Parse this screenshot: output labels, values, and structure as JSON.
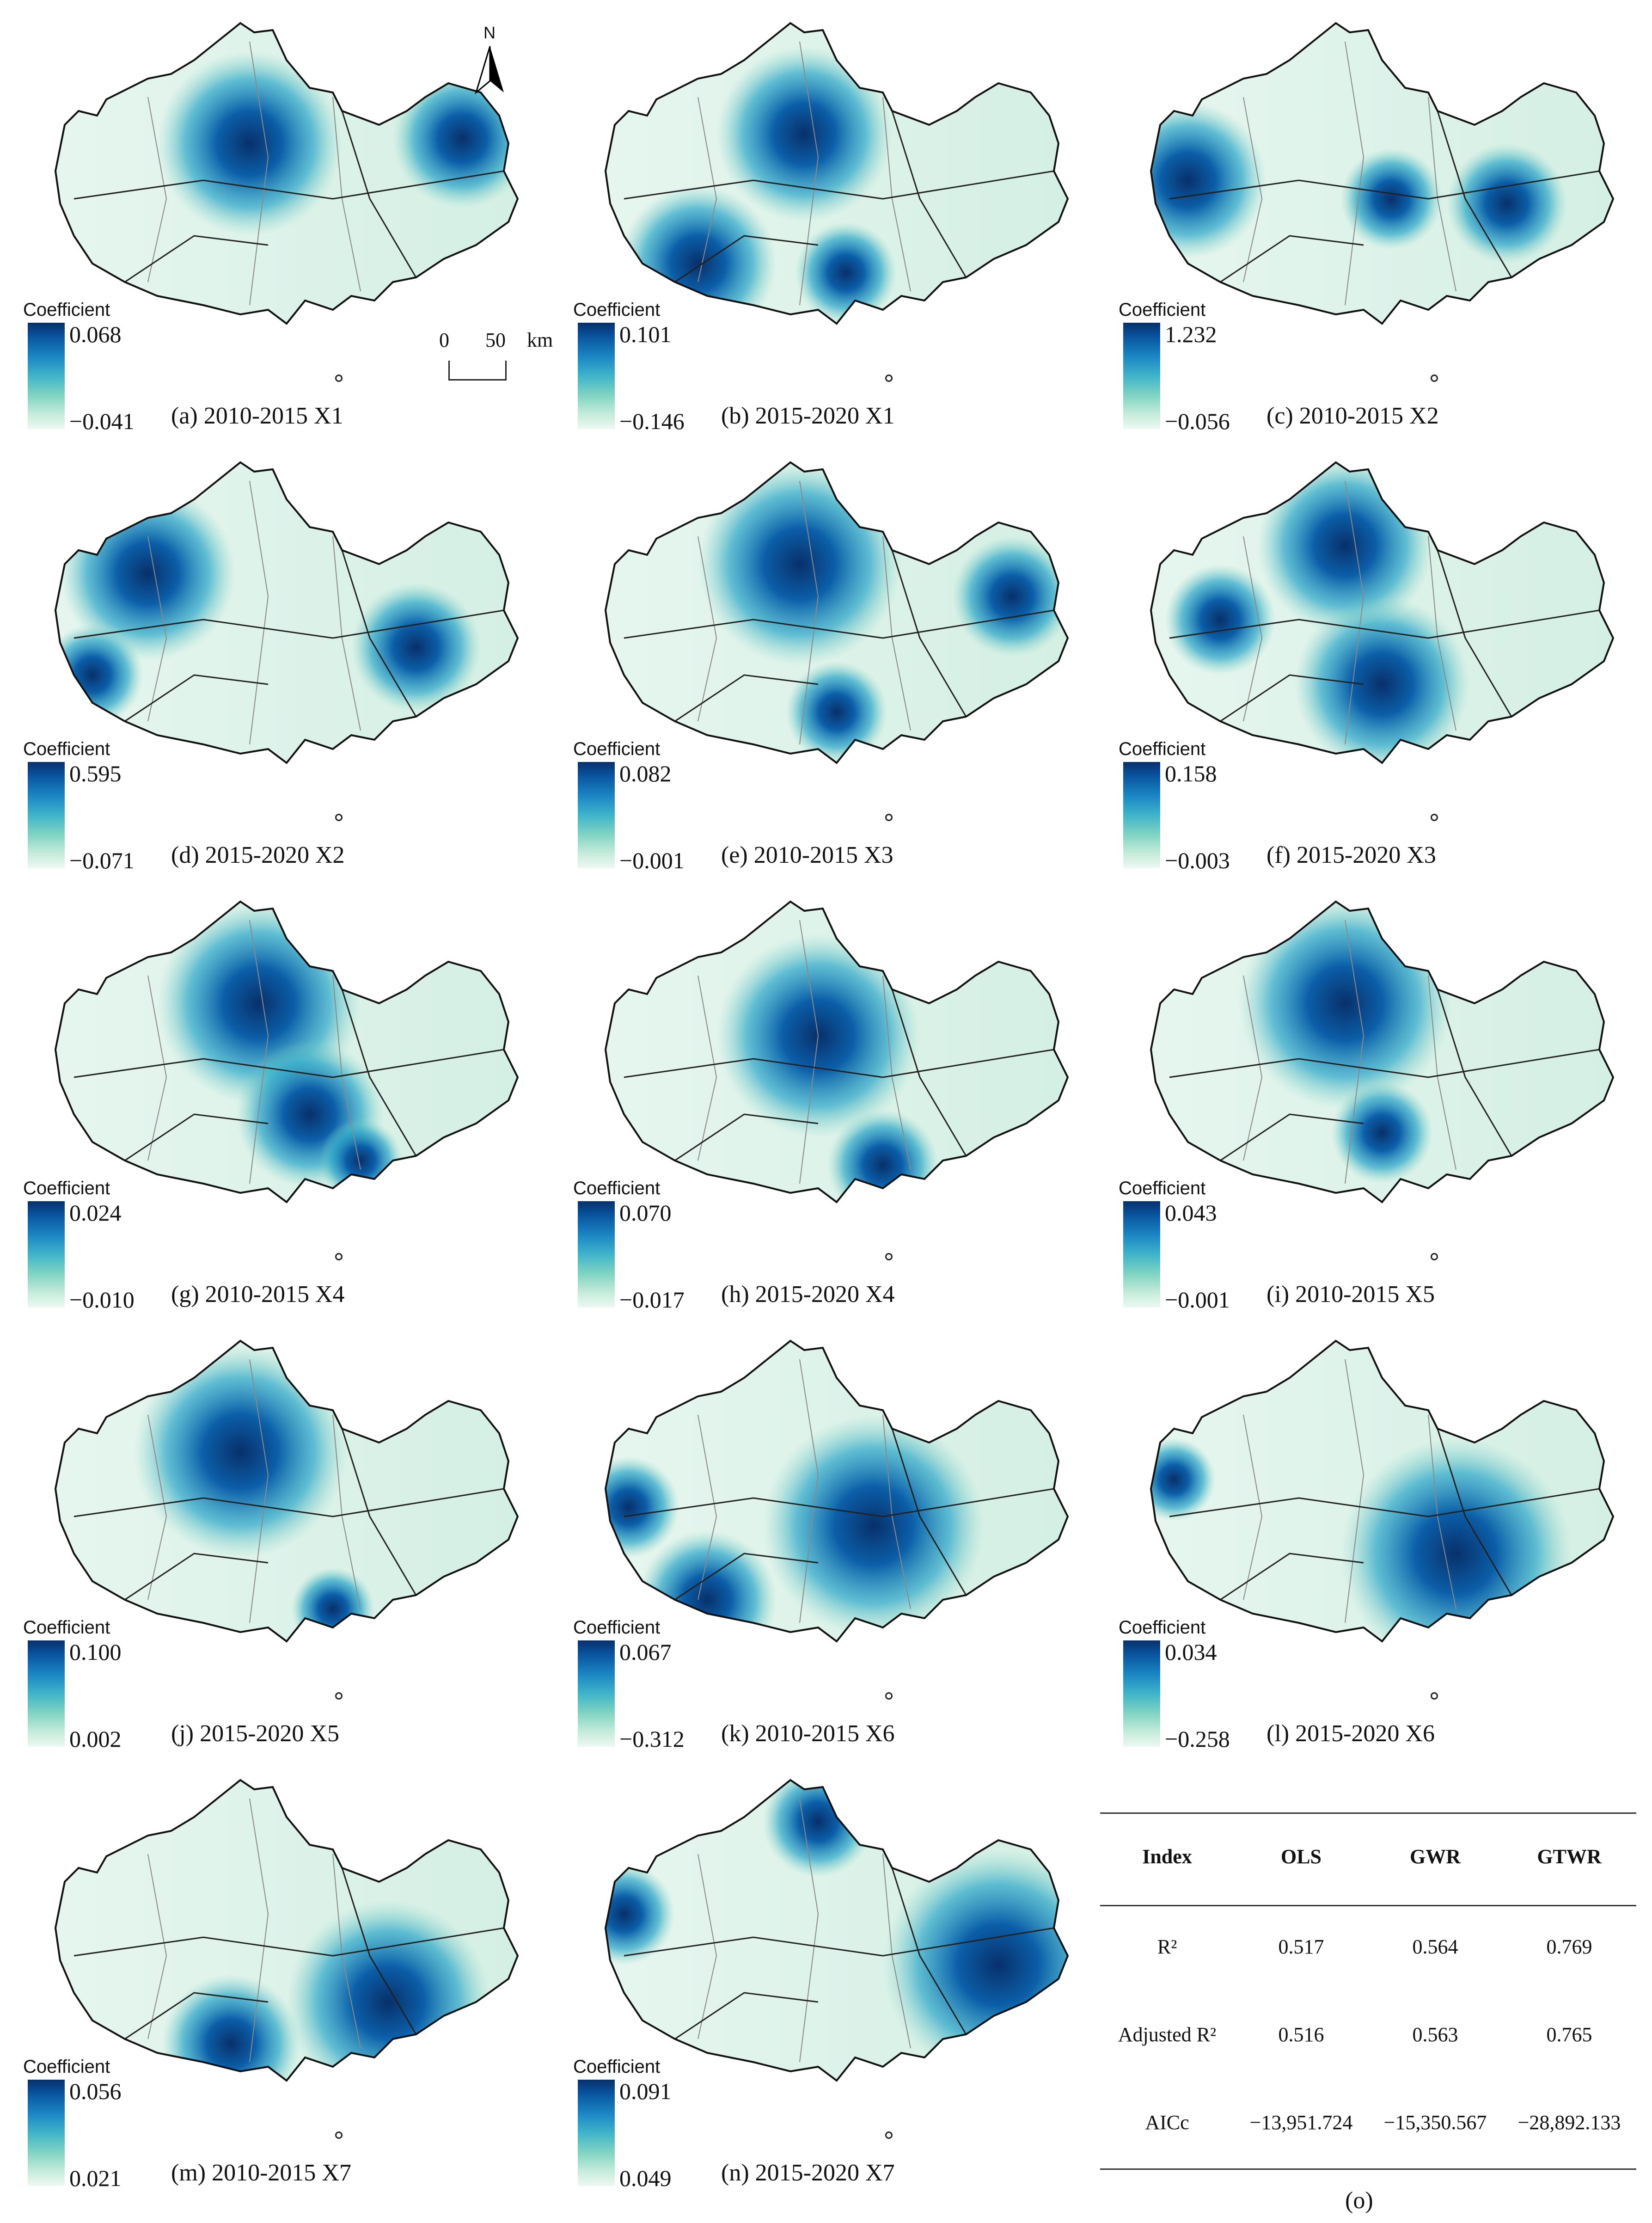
{
  "north_label": "N",
  "scale": {
    "zero": "0",
    "fifty": "50",
    "unit": "km"
  },
  "legend_title": "Coefficient",
  "panels": [
    {
      "caption": "(a) 2010-2015 X1",
      "max": "0.068",
      "min": "−0.041"
    },
    {
      "caption": "(b) 2015-2020 X1",
      "max": "0.101",
      "min": "−0.146"
    },
    {
      "caption": "(c) 2010-2015 X2",
      "max": "1.232",
      "min": "−0.056"
    },
    {
      "caption": "(d) 2015-2020 X2",
      "max": "0.595",
      "min": "−0.071"
    },
    {
      "caption": "(e) 2010-2015 X3",
      "max": "0.082",
      "min": "−0.001"
    },
    {
      "caption": "(f) 2015-2020 X3",
      "max": "0.158",
      "min": "−0.003"
    },
    {
      "caption": "(g) 2010-2015 X4",
      "max": "0.024",
      "min": "−0.010"
    },
    {
      "caption": "(h) 2015-2020 X4",
      "max": "0.070",
      "min": "−0.017"
    },
    {
      "caption": "(i) 2010-2015 X5",
      "max": "0.043",
      "min": "−0.001"
    },
    {
      "caption": "(j) 2015-2020 X5",
      "max": "0.100",
      "min": "0.002"
    },
    {
      "caption": "(k) 2010-2015 X6",
      "max": "0.067",
      "min": "−0.312"
    },
    {
      "caption": "(l) 2015-2020 X6",
      "max": "0.034",
      "min": "−0.258"
    },
    {
      "caption": "(m) 2010-2015 X7",
      "max": "0.056",
      "min": "0.021"
    },
    {
      "caption": "(n) 2015-2020 X7",
      "max": "0.091",
      "min": "0.049"
    }
  ],
  "table": {
    "headers": [
      "Index",
      "OLS",
      "GWR",
      "GTWR"
    ],
    "rows": [
      {
        "index": "R²",
        "ols": "0.517",
        "gwr": "0.564",
        "gtwr": "0.769"
      },
      {
        "index": "Adjusted R²",
        "ols": "0.516",
        "gwr": "0.563",
        "gtwr": "0.765"
      },
      {
        "index": "AICc",
        "ols": "−13,951.724",
        "gwr": "−15,350.567",
        "gtwr": "−28,892.133"
      }
    ],
    "caption": "(o)"
  }
}
